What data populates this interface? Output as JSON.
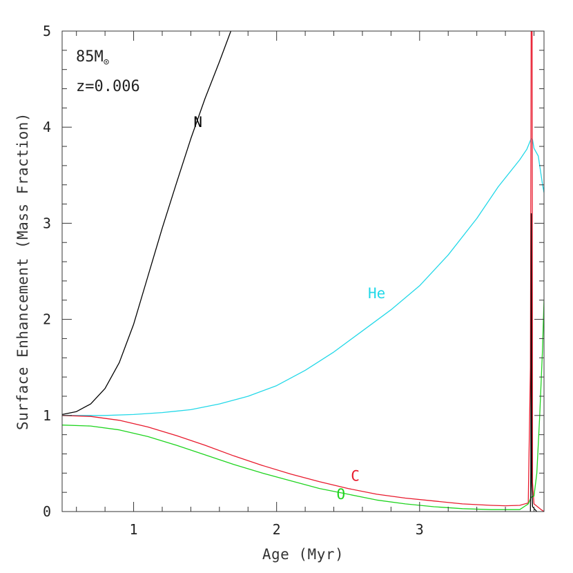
{
  "chart_data": {
    "type": "line",
    "xlabel": "Age (Myr)",
    "ylabel": "Surface Enhancement (Mass Fraction)",
    "xlim": [
      0.5,
      3.87
    ],
    "ylim": [
      0,
      5
    ],
    "xticks": [
      {
        "value": 1,
        "label": "1"
      },
      {
        "value": 2,
        "label": "2"
      },
      {
        "value": 3,
        "label": "3"
      }
    ],
    "yticks": [
      {
        "value": 0,
        "label": "0"
      },
      {
        "value": 1,
        "label": "1"
      },
      {
        "value": 2,
        "label": "2"
      },
      {
        "value": 3,
        "label": "3"
      },
      {
        "value": 4,
        "label": "4"
      },
      {
        "value": 5,
        "label": "5"
      }
    ],
    "annotation": {
      "mass_value": "85",
      "mass_unit": "M",
      "mass_symbol": "⊙",
      "metallicity": "z=0.006"
    },
    "series": [
      {
        "name": "N",
        "color": "#000000",
        "label_at": [
          1.45,
          4.0
        ],
        "points": [
          [
            0.5,
            1.01
          ],
          [
            0.6,
            1.04
          ],
          [
            0.7,
            1.12
          ],
          [
            0.8,
            1.28
          ],
          [
            0.9,
            1.55
          ],
          [
            1.0,
            1.95
          ],
          [
            1.1,
            2.45
          ],
          [
            1.2,
            2.95
          ],
          [
            1.3,
            3.42
          ],
          [
            1.4,
            3.88
          ],
          [
            1.5,
            4.3
          ],
          [
            1.6,
            4.68
          ],
          [
            1.68,
            5.0
          ]
        ]
      },
      {
        "name": "He",
        "color": "#22d8e8",
        "label_at": [
          2.7,
          2.22
        ],
        "points": [
          [
            0.5,
            1.0
          ],
          [
            0.8,
            1.0
          ],
          [
            1.0,
            1.01
          ],
          [
            1.2,
            1.03
          ],
          [
            1.4,
            1.06
          ],
          [
            1.6,
            1.12
          ],
          [
            1.8,
            1.2
          ],
          [
            2.0,
            1.31
          ],
          [
            2.2,
            1.47
          ],
          [
            2.4,
            1.66
          ],
          [
            2.6,
            1.88
          ],
          [
            2.8,
            2.1
          ],
          [
            3.0,
            2.35
          ],
          [
            3.2,
            2.67
          ],
          [
            3.4,
            3.05
          ],
          [
            3.55,
            3.38
          ],
          [
            3.7,
            3.66
          ],
          [
            3.75,
            3.77
          ],
          [
            3.78,
            3.88
          ],
          [
            3.79,
            3.87
          ],
          [
            3.8,
            3.78
          ],
          [
            3.83,
            3.7
          ],
          [
            3.86,
            3.4
          ],
          [
            3.87,
            3.32
          ]
        ]
      },
      {
        "name": "C",
        "color": "#e8192c",
        "label_at": [
          2.55,
          0.32
        ],
        "points": [
          [
            0.5,
            1.0
          ],
          [
            0.7,
            0.99
          ],
          [
            0.9,
            0.95
          ],
          [
            1.1,
            0.88
          ],
          [
            1.3,
            0.79
          ],
          [
            1.5,
            0.69
          ],
          [
            1.7,
            0.58
          ],
          [
            1.9,
            0.48
          ],
          [
            2.1,
            0.39
          ],
          [
            2.3,
            0.31
          ],
          [
            2.5,
            0.24
          ],
          [
            2.7,
            0.18
          ],
          [
            2.9,
            0.14
          ],
          [
            3.1,
            0.11
          ],
          [
            3.3,
            0.08
          ],
          [
            3.5,
            0.065
          ],
          [
            3.6,
            0.06
          ],
          [
            3.7,
            0.065
          ],
          [
            3.76,
            0.09
          ],
          [
            3.775,
            1.5
          ],
          [
            3.78,
            5.0
          ],
          [
            3.787,
            5.0
          ],
          [
            3.79,
            0.3
          ],
          [
            3.8,
            0.08
          ],
          [
            3.85,
            0.02
          ],
          [
            3.87,
            0.0
          ]
        ]
      },
      {
        "name": "O",
        "color": "#1ed41e",
        "label_at": [
          2.45,
          0.13
        ],
        "points": [
          [
            0.5,
            0.9
          ],
          [
            0.7,
            0.89
          ],
          [
            0.9,
            0.85
          ],
          [
            1.1,
            0.78
          ],
          [
            1.3,
            0.69
          ],
          [
            1.5,
            0.59
          ],
          [
            1.7,
            0.49
          ],
          [
            1.9,
            0.4
          ],
          [
            2.1,
            0.32
          ],
          [
            2.3,
            0.24
          ],
          [
            2.5,
            0.18
          ],
          [
            2.7,
            0.12
          ],
          [
            2.9,
            0.08
          ],
          [
            3.1,
            0.05
          ],
          [
            3.3,
            0.03
          ],
          [
            3.5,
            0.02
          ],
          [
            3.7,
            0.02
          ],
          [
            3.76,
            0.08
          ],
          [
            3.78,
            0.15
          ],
          [
            3.8,
            0.16
          ],
          [
            3.82,
            0.4
          ],
          [
            3.84,
            1.0
          ],
          [
            3.86,
            1.7
          ],
          [
            3.87,
            2.2
          ]
        ]
      },
      {
        "name": "",
        "color": "#000000",
        "label_at": null,
        "points": [
          [
            3.775,
            0.0
          ],
          [
            3.778,
            0.4
          ],
          [
            3.781,
            3.1
          ],
          [
            3.784,
            0.3
          ],
          [
            3.79,
            0.05
          ],
          [
            3.82,
            0.0
          ]
        ]
      }
    ]
  }
}
